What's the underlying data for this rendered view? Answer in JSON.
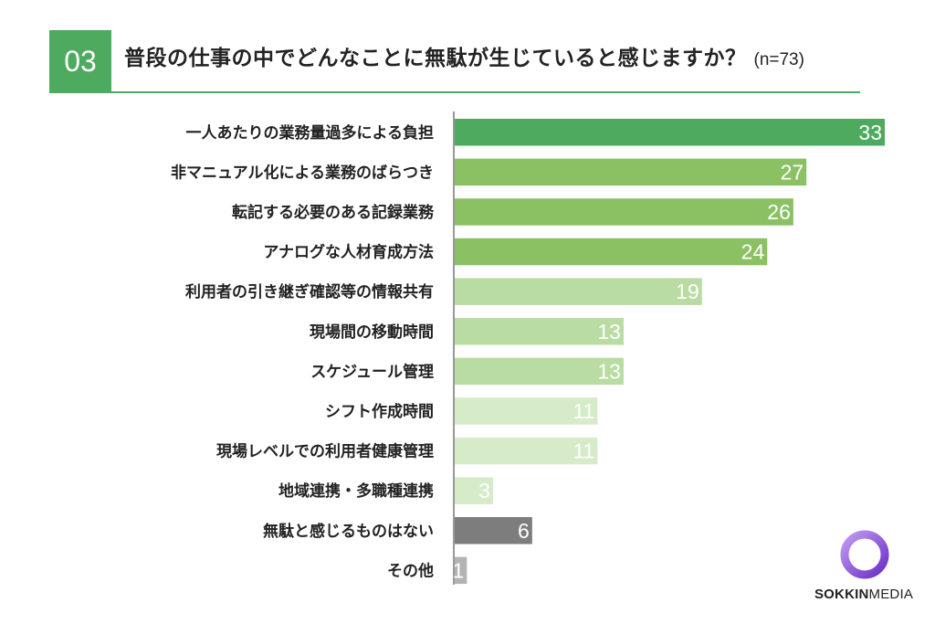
{
  "header": {
    "number": "03",
    "question": "普段の仕事の中でどんなことに無駄が生じていると感じますか？",
    "sample": "(n=73)"
  },
  "chart_data": {
    "type": "bar",
    "orientation": "horizontal",
    "categories": [
      "一人あたりの業務量過多による負担",
      "非マニュアル化による業務のばらつき",
      "転記する必要のある記録業務",
      "アナログな人材育成方法",
      "利用者の引き継ぎ確認等の情報共有",
      "現場間の移動時間",
      "スケジュール管理",
      "シフト作成時間",
      "現場レベルでの利用者健康管理",
      "地域連携・多職種連携",
      "無駄と感じるものはない",
      "その他"
    ],
    "values": [
      33,
      27,
      26,
      24,
      19,
      13,
      13,
      11,
      11,
      3,
      6,
      1
    ],
    "colors": [
      "#4daa5e",
      "#8bc063",
      "#8bc063",
      "#8bc063",
      "#b9dca2",
      "#b9dca2",
      "#b9dca2",
      "#d6ebc7",
      "#d6ebc7",
      "#d6ebc7",
      "#7d7d7d",
      "#b3b3b3"
    ],
    "value_label_color": "#ffffff",
    "xlim": [
      0,
      33
    ],
    "grid": false,
    "legend": "none"
  },
  "brand": {
    "name_part1": "SOKKIN",
    "name_part2": "MEDIA",
    "ring_color": "#7b3fd1"
  }
}
